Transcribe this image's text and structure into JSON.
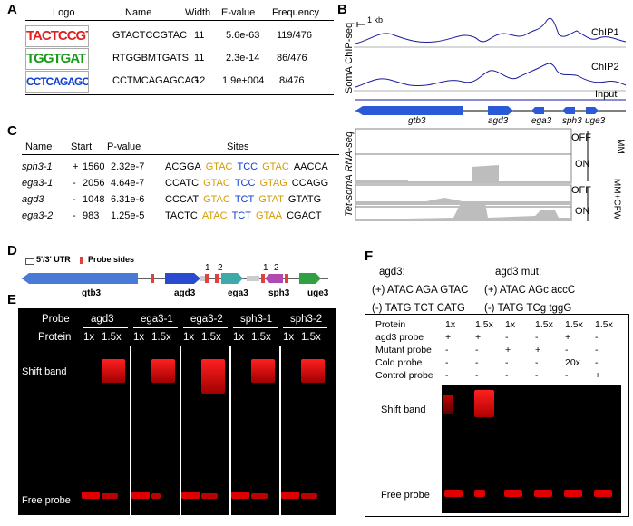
{
  "panel_a": {
    "letter": "A",
    "headers": [
      "Logo",
      "Name",
      "Width",
      "E-value",
      "Frequency"
    ],
    "rows": [
      {
        "logo": "TACTCCGTA",
        "name": "GTACTCCGTAC",
        "width": "11",
        "evalue": "5.6e-63",
        "freq": "119/476"
      },
      {
        "logo": "TGGTGAT",
        "name": "RTGGBMTGATS",
        "width": "11",
        "evalue": "2.3e-14",
        "freq": "86/476"
      },
      {
        "logo": "CCTCAGAGCAG",
        "name": "CCTMCAGAGCAG",
        "width": "12",
        "evalue": "1.9e+004",
        "freq": "8/476"
      }
    ]
  },
  "panel_b": {
    "letter": "B",
    "scale": "1 kb",
    "ylabel_chip": "SomA ChIP-seq",
    "tracks": [
      "ChIP1",
      "ChIP2",
      "Input"
    ],
    "genes": [
      "gtb3",
      "agd3",
      "ega3",
      "sph3",
      "uge3"
    ],
    "ylabel_rna": "Tet-somA RNA-seq",
    "rna_tracks": [
      "OFF",
      "ON",
      "OFF",
      "ON"
    ],
    "conditions": [
      "MM",
      "MM+CFW"
    ]
  },
  "panel_c": {
    "letter": "C",
    "headers": [
      "Name",
      "Start",
      "P-value",
      "Sites"
    ],
    "rows": [
      {
        "name": "sph3-1",
        "strand": "+",
        "start": "1560",
        "pvalue": "2.32e-7",
        "left": "ACGGA",
        "m1": "GTAC",
        "m2": "TCC",
        "m3": "GTAC",
        "right": "AACCA"
      },
      {
        "name": "ega3-1",
        "strand": "-",
        "start": "2056",
        "pvalue": "4.64e-7",
        "left": "CCATC",
        "m1": "GTAC",
        "m2": "TCC",
        "m3": "GTAG",
        "right": "CCAGG"
      },
      {
        "name": "agd3",
        "strand": "-",
        "start": "1048",
        "pvalue": "6.31e-6",
        "left": "CCCAT",
        "m1": "GTAC",
        "m2": "TCT",
        "m3": "GTAT",
        "right": "GTATG"
      },
      {
        "name": "ega3-2",
        "strand": "-",
        "start": "983",
        "pvalue": "1.25e-5",
        "left": "TACTC",
        "m1": "ATAC",
        "m2": "TCT",
        "m3": "GTAA",
        "right": "CGACT"
      }
    ]
  },
  "panel_d": {
    "letter": "D",
    "legend_utr": "5'/3' UTR",
    "legend_probe": "Probe sides",
    "genes": [
      "gtb3",
      "agd3",
      "ega3",
      "sph3",
      "uge3"
    ],
    "probe_nums": [
      "1",
      "2",
      "1",
      "2"
    ]
  },
  "panel_e": {
    "letter": "E",
    "probe_label": "Probe",
    "protein_label": "Protein",
    "probes": [
      "agd3",
      "ega3-1",
      "ega3-2",
      "sph3-1",
      "sph3-2"
    ],
    "doses": [
      "1x",
      "1.5x"
    ],
    "shift_label": "Shift band",
    "free_label": "Free probe"
  },
  "panel_f": {
    "letter": "F",
    "wt_title": "agd3:",
    "wt_plus": "(+) ATAC AGA GTAC",
    "wt_minus": "(-)  TATG TCT CATG",
    "mut_title": "agd3 mut:",
    "mut_plus": "(+) ATAC AGc  accC",
    "mut_minus": "(-) TATG TCg  tggG",
    "row_labels": [
      "Protein",
      "agd3  probe",
      "Mutant probe",
      "Cold  probe",
      "Control  probe"
    ],
    "cols": [
      [
        "1x",
        "+",
        "-",
        "-",
        "-"
      ],
      [
        "1.5x",
        "+",
        "-",
        "-",
        "-"
      ],
      [
        "1x",
        "-",
        "+",
        "-",
        "-"
      ],
      [
        "1.5x",
        "-",
        "+",
        "-",
        "-"
      ],
      [
        "1.5x",
        "+",
        "-",
        "20x",
        "-"
      ],
      [
        "1.5x",
        "-",
        "-",
        "-",
        "+"
      ]
    ],
    "shift_label": "Shift band",
    "free_label": "Free probe"
  },
  "colors": {
    "gene_blue": "#2a5ad8",
    "band_red": "#e00000",
    "track_blue": "#1a1aa0",
    "rna_gray": "#bdbdbd"
  }
}
